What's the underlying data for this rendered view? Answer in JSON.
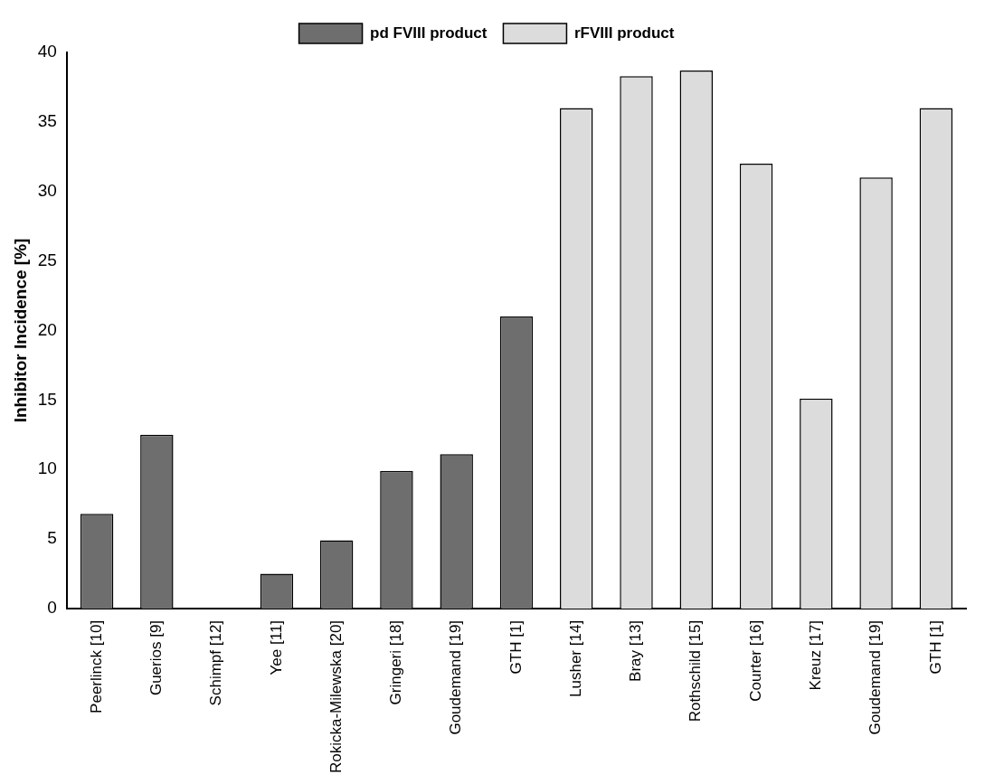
{
  "chart_data": {
    "type": "bar",
    "ylabel": "Inhibitor Incidence [%]",
    "categories": [
      "Peerlinck [10]",
      "Guerios [9]",
      "Schimpf [12]",
      "Yee [11]",
      "Rokicka-Milewska [20]",
      "Gringeri [18]",
      "Goudemand [19]",
      "GTH [1]",
      "Lusher [14]",
      "Bray [13]",
      "Rothschild [15]",
      "Courter [16]",
      "Kreuz [17]",
      "Goudemand [19]",
      "GTH [1]"
    ],
    "series": [
      {
        "name": "pd FVIII product",
        "color": "#6e6e6e",
        "values": [
          6.8,
          12.5,
          0,
          2.5,
          4.9,
          9.9,
          11.1,
          21,
          null,
          null,
          null,
          null,
          null,
          null,
          null
        ]
      },
      {
        "name": "rFVIII product",
        "color": "#dcdcdc",
        "values": [
          null,
          null,
          null,
          null,
          null,
          null,
          null,
          null,
          36,
          38.3,
          38.7,
          32,
          15.1,
          31,
          36
        ]
      }
    ],
    "ylim": [
      0,
      40
    ],
    "yticks": [
      0,
      5,
      10,
      15,
      20,
      25,
      30,
      35,
      40
    ],
    "grid": false,
    "legend": "top"
  }
}
